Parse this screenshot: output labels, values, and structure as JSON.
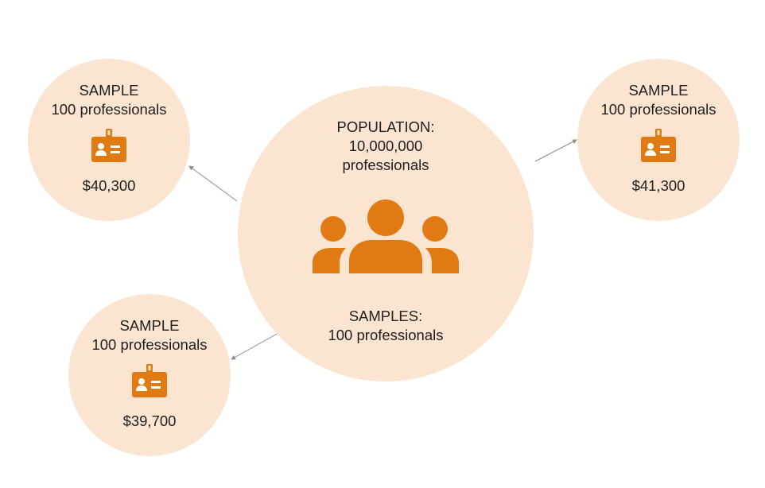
{
  "population": {
    "label_line1": "POPULATION:",
    "label_line2": "10,000,000",
    "label_line3": "professionals",
    "samples_line1": "SAMPLES:",
    "samples_line2": "100 professionals",
    "icon": "group-people-icon"
  },
  "samples": [
    {
      "title": "SAMPLE",
      "subtitle": "100 professionals",
      "amount": "$40,300",
      "icon": "id-badge-icon"
    },
    {
      "title": "SAMPLE",
      "subtitle": "100 professionals",
      "amount": "$41,300",
      "icon": "id-badge-icon"
    },
    {
      "title": "SAMPLE",
      "subtitle": "100 professionals",
      "amount": "$39,700",
      "icon": "id-badge-icon"
    }
  ],
  "colors": {
    "circle_fill": "#fbe5d0",
    "icon_orange": "#e07a12",
    "arrow": "#8c8c8c",
    "text": "#1f1f1f"
  }
}
